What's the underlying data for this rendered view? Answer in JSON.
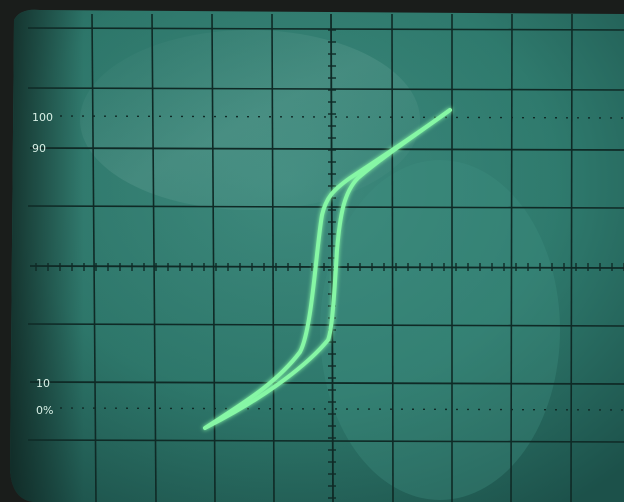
{
  "scope": {
    "graticule_labels": {
      "label_100": "100",
      "label_90": "90",
      "label_10": "10",
      "label_0": "0%"
    },
    "trace_shape": "hysteresis-loop",
    "colors": {
      "bezel": "#111513",
      "screen": "#2f7d70",
      "screen_shade": "#1f5a51",
      "grid": "#0f2a26",
      "trace": "#86f7a5",
      "label": "#d9f0e6"
    }
  }
}
